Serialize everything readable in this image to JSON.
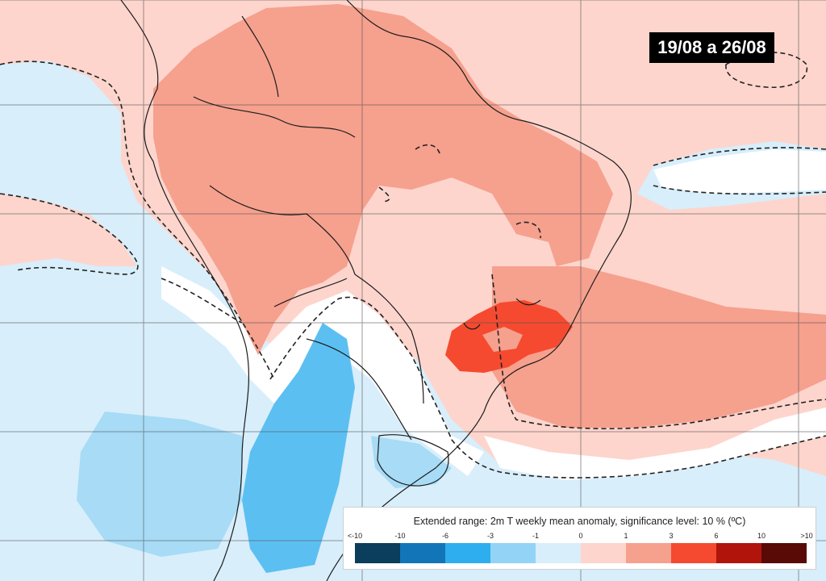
{
  "map": {
    "date_range": "19/08 a 26/08"
  },
  "legend": {
    "title": "Extended range: 2m T weekly mean anomaly, significance level: 10 % (ºC)",
    "ticks": [
      "<-10",
      "-10",
      "-6",
      "-3",
      "-1",
      "0",
      "1",
      "3",
      "6",
      "10",
      ">10"
    ],
    "colors": [
      "#0b3d5c",
      "#1275b8",
      "#2faeef",
      "#93d4f6",
      "#d8eefb",
      "#ffffff",
      "#fdd5cd",
      "#f6a08e",
      "#f54a30",
      "#b0140a",
      "#5a0a06"
    ]
  }
}
